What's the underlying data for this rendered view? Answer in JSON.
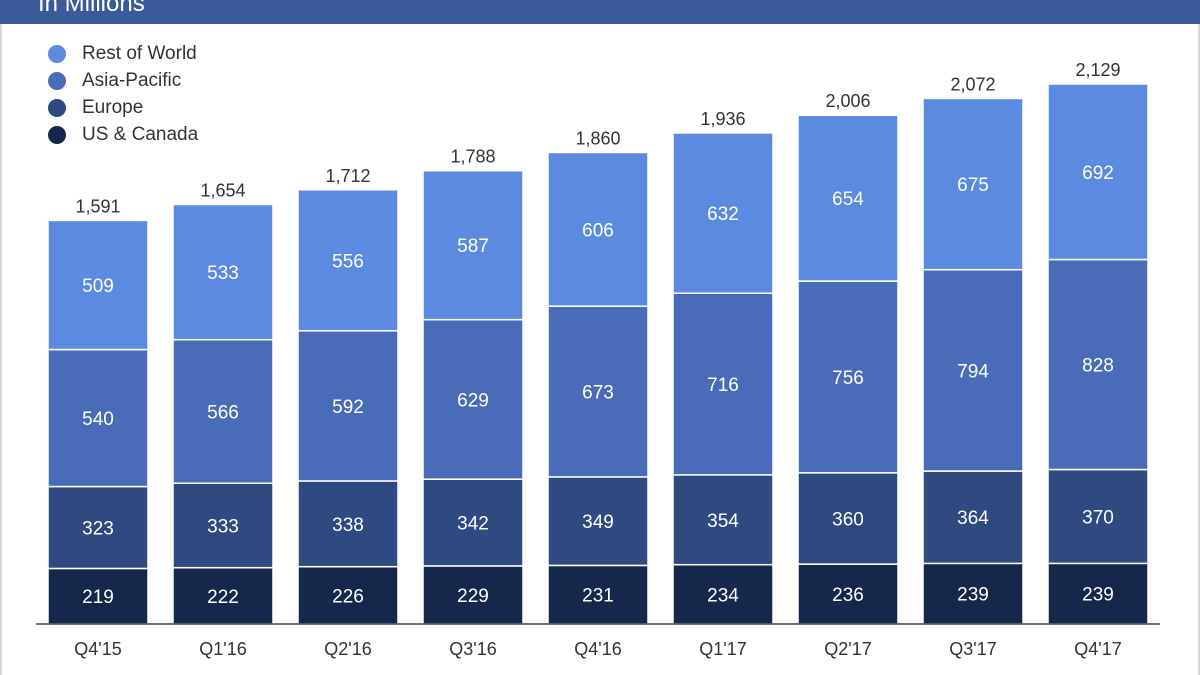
{
  "header": {
    "text": "In Millions",
    "color": "#3b5a9a"
  },
  "chart_data": {
    "type": "bar",
    "stacked": true,
    "categories": [
      "Q4'15",
      "Q1'16",
      "Q2'16",
      "Q3'16",
      "Q4'16",
      "Q1'17",
      "Q2'17",
      "Q3'17",
      "Q4'17"
    ],
    "series": [
      {
        "name": "US & Canada",
        "color": "#15274b",
        "values": [
          219,
          222,
          226,
          229,
          231,
          234,
          236,
          239,
          239
        ]
      },
      {
        "name": "Europe",
        "color": "#2e4a80",
        "values": [
          323,
          333,
          338,
          342,
          349,
          354,
          360,
          364,
          370
        ]
      },
      {
        "name": "Asia-Pacific",
        "color": "#4a6bb7",
        "values": [
          540,
          566,
          592,
          629,
          673,
          716,
          756,
          794,
          828
        ]
      },
      {
        "name": "Rest of World",
        "color": "#5b8ae0",
        "values": [
          509,
          533,
          556,
          587,
          606,
          632,
          654,
          675,
          692
        ]
      }
    ],
    "totals": [
      "1,591",
      "1,654",
      "1,712",
      "1,788",
      "1,860",
      "1,936",
      "2,006",
      "2,072",
      "2,129"
    ],
    "legend": [
      "Rest of World",
      "Asia-Pacific",
      "Europe",
      "US & Canada"
    ],
    "legend_position": "top-left",
    "ylim": [
      0,
      2129
    ],
    "grid": false
  }
}
